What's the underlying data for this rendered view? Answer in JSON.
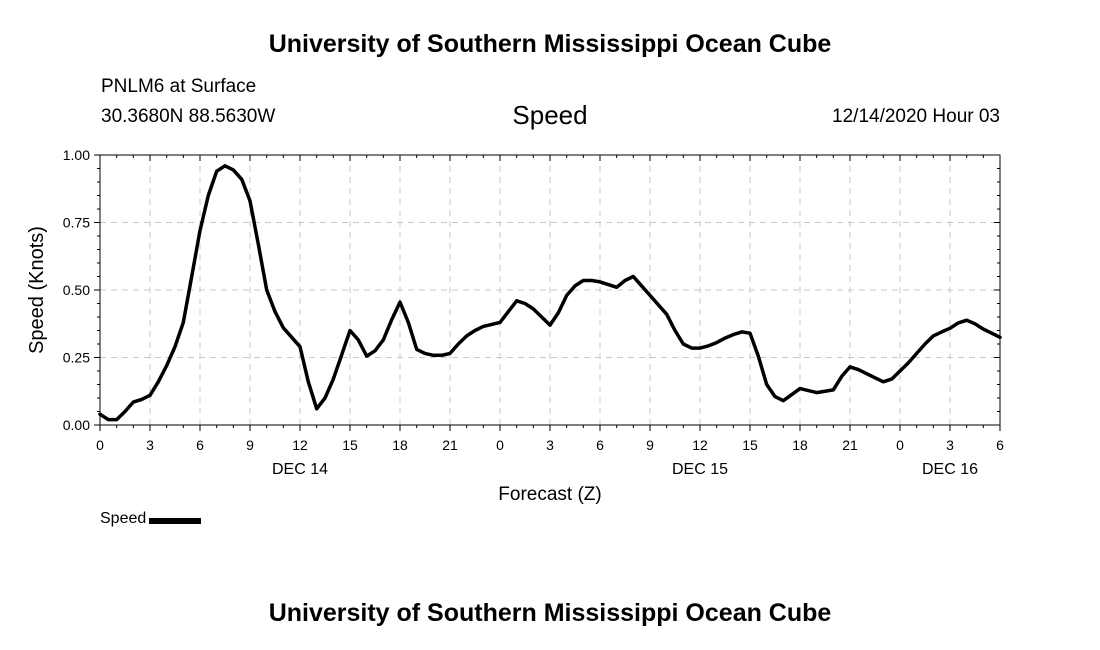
{
  "header": {
    "title": "University of Southern Mississippi Ocean Cube",
    "station": "PNLM6 at Surface",
    "coords": "30.3680N 88.5630W",
    "chart_title": "Speed",
    "timestamp": "12/14/2020 Hour 03"
  },
  "footer": {
    "title": "University of Southern Mississippi Ocean Cube"
  },
  "legend": {
    "label": "Speed"
  },
  "colors": {
    "line": "#000000",
    "grid": "#c8c8c8"
  },
  "chart_data": {
    "type": "line",
    "title": "Speed",
    "xlabel": "Forecast (Z)",
    "ylabel": "Speed (Knots)",
    "ylim": [
      0,
      1
    ],
    "xlim": [
      0,
      54
    ],
    "grid": true,
    "legend_position": "bottom-left",
    "yticks": [
      0,
      0.25,
      0.5,
      0.75,
      1
    ],
    "ytick_labels": [
      "0.00",
      "0.25",
      "0.50",
      "0.75",
      "1.00"
    ],
    "xticks": [
      0,
      3,
      6,
      9,
      12,
      15,
      18,
      21,
      24,
      27,
      30,
      33,
      36,
      39,
      42,
      45,
      48,
      51,
      54
    ],
    "xtick_labels": [
      "0",
      "3",
      "6",
      "9",
      "12",
      "15",
      "18",
      "21",
      "0",
      "3",
      "6",
      "9",
      "12",
      "15",
      "18",
      "21",
      "0",
      "3",
      "6"
    ],
    "date_labels": [
      {
        "x": 12,
        "label": "DEC 14"
      },
      {
        "x": 36,
        "label": "DEC 15"
      },
      {
        "x": 51,
        "label": "DEC 16"
      }
    ],
    "series": [
      {
        "name": "Speed",
        "x": [
          0,
          0.5,
          1,
          1.5,
          2,
          2.5,
          3,
          3.5,
          4,
          4.5,
          5,
          5.5,
          6,
          6.5,
          7,
          7.5,
          8,
          8.5,
          9,
          9.5,
          10,
          10.5,
          11,
          12,
          12.5,
          13,
          13.5,
          14,
          14.5,
          15,
          15.5,
          16,
          16.5,
          17,
          17.5,
          18,
          18.5,
          19,
          19.5,
          20,
          20.5,
          21,
          21.5,
          22,
          22.5,
          23,
          24,
          25,
          25.5,
          26,
          27,
          27.5,
          28,
          28.5,
          29,
          29.5,
          30,
          30.5,
          31,
          31.5,
          32,
          33,
          34,
          34.5,
          35,
          35.5,
          36,
          36.5,
          37,
          37.5,
          38,
          38.5,
          39,
          39.5,
          40,
          40.5,
          41,
          42,
          43,
          44,
          44.5,
          45,
          45.5,
          46,
          46.5,
          47,
          47.5,
          48,
          48.5,
          49,
          49.5,
          50,
          50.5,
          51,
          51.5,
          52,
          52.5,
          53,
          53.5,
          54
        ],
        "values": [
          0.04,
          0.02,
          0.02,
          0.05,
          0.085,
          0.095,
          0.11,
          0.16,
          0.22,
          0.29,
          0.38,
          0.55,
          0.72,
          0.85,
          0.94,
          0.96,
          0.945,
          0.91,
          0.83,
          0.67,
          0.5,
          0.42,
          0.36,
          0.29,
          0.16,
          0.06,
          0.1,
          0.17,
          0.26,
          0.35,
          0.315,
          0.255,
          0.275,
          0.315,
          0.39,
          0.455,
          0.38,
          0.28,
          0.265,
          0.258,
          0.258,
          0.265,
          0.3,
          0.33,
          0.35,
          0.365,
          0.38,
          0.46,
          0.45,
          0.43,
          0.37,
          0.415,
          0.48,
          0.515,
          0.535,
          0.535,
          0.53,
          0.52,
          0.51,
          0.535,
          0.55,
          0.48,
          0.41,
          0.35,
          0.3,
          0.285,
          0.285,
          0.293,
          0.305,
          0.322,
          0.335,
          0.345,
          0.34,
          0.255,
          0.15,
          0.105,
          0.09,
          0.135,
          0.12,
          0.13,
          0.18,
          0.215,
          0.205,
          0.19,
          0.175,
          0.16,
          0.17,
          0.2,
          0.23,
          0.265,
          0.3,
          0.33,
          0.345,
          0.358,
          0.378,
          0.388,
          0.375,
          0.355,
          0.34,
          0.325
        ]
      }
    ]
  }
}
